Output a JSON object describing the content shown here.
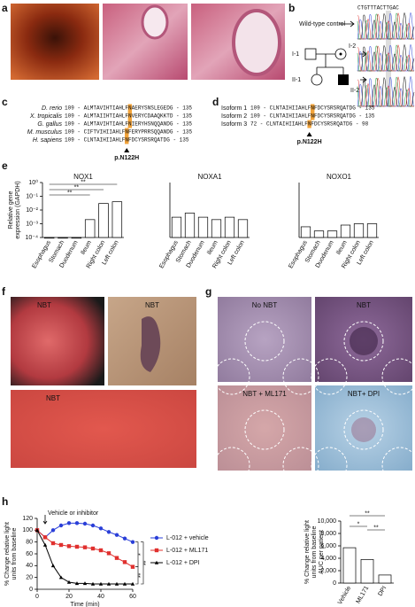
{
  "panel_labels": [
    "a",
    "b",
    "c",
    "d",
    "e",
    "f",
    "g",
    "h"
  ],
  "panel_b": {
    "control_label": "Wild-type control",
    "sequence": "CTGTTTACTTGAC",
    "individuals": [
      "I-1",
      "I-2",
      "II-1",
      "II-2"
    ]
  },
  "panel_c": {
    "rows": [
      {
        "name": "D. rerio",
        "left": "109 - ALMTAVIHTIAHLF",
        "residue": "N",
        "right": "AERYSNSLEGEDG - 135"
      },
      {
        "name": "X. tropicalis",
        "left": "109 - ALMTAIIHTIAHLF",
        "residue": "N",
        "right": "VERYCDAAQKKTD - 135"
      },
      {
        "name": "G. gallus",
        "left": "109 - ALMTAVIHTIAHLF",
        "residue": "N",
        "right": "IERYHSNQQANDG - 135"
      },
      {
        "name": "M. musculus",
        "left": "109 - CIFTVIHIIAHLF",
        "residue": "N",
        "right": "FERYPRRSQQANDG - 135"
      },
      {
        "name": "H. sapiens",
        "left": "109 - CLNTAIHIIAHLF",
        "residue": "N",
        "right": "FDCYSRSRQATDG - 135"
      }
    ],
    "mutation": "p.N122H"
  },
  "panel_d": {
    "rows": [
      {
        "name": "Isoform 1",
        "left": "109 - CLNTAIHIIAHLF",
        "residue": "N",
        "right": "FDCYSRSRQATDG - 135"
      },
      {
        "name": "Isoform 2",
        "left": "109 - CLNTAIHIIAHLF",
        "residue": "N",
        "right": "FDCYSRSRQATDG - 135"
      },
      {
        "name": "Isoform 3",
        "left": "72 - CLNTAIHIIAHLF",
        "residue": "N",
        "right": "FDCYSRSRQATDG - 98"
      }
    ],
    "mutation": "p.N122H"
  },
  "panel_f": {
    "labels": [
      "NBT",
      "NBT",
      "NBT"
    ]
  },
  "panel_g": {
    "labels": [
      "No NBT",
      "NBT",
      "NBT + ML171",
      "NBT+ DPI"
    ]
  },
  "chart_data": [
    {
      "type": "bar",
      "title": "NOX1",
      "y_label": [
        "Relative gene",
        "expression (GAPDH)"
      ],
      "log_scale": true,
      "categories": [
        "Esophagus",
        "Stomach",
        "Duodenum",
        "Ileum",
        "Right colon",
        "Left colon"
      ],
      "values": [
        0.0001,
        0.0001,
        0.0001,
        0.002,
        0.03,
        0.04
      ],
      "color": "#ffffff",
      "edge_color": "#000000",
      "ylim": [
        0.0001,
        1
      ],
      "yticks": [
        {
          "value": 0.0001,
          "label": "10⁻⁴"
        },
        {
          "value": 0.001,
          "label": "10⁻³"
        },
        {
          "value": 0.01,
          "label": "10⁻²"
        },
        {
          "value": 0.1,
          "label": "10⁻¹"
        },
        {
          "value": 1,
          "label": "10⁰"
        }
      ],
      "significance": [
        "**",
        "**",
        "**"
      ]
    },
    {
      "type": "bar",
      "title": "NOXA1",
      "log_scale": true,
      "categories": [
        "Esophagus",
        "Stomach",
        "Duodenum",
        "Ileum",
        "Right colon",
        "Left colon"
      ],
      "values": [
        0.003,
        0.006,
        0.003,
        0.002,
        0.003,
        0.002
      ],
      "color": "#ffffff",
      "edge_color": "#000000",
      "ylim": [
        0.0001,
        1
      ]
    },
    {
      "type": "bar",
      "title": "NOXO1",
      "log_scale": true,
      "categories": [
        "Esophagus",
        "Stomach",
        "Duodenum",
        "Ileum",
        "Right colon",
        "Left colon"
      ],
      "values": [
        0.0006,
        0.0003,
        0.0003,
        0.0008,
        0.001,
        0.001
      ],
      "color": "#ffffff",
      "edge_color": "#000000",
      "ylim": [
        0.0001,
        1
      ]
    },
    {
      "type": "line",
      "annotation": "Vehicle or inhibitor",
      "x_label": "Time (min)",
      "y_label": [
        "% Change relative light",
        "units from baseline"
      ],
      "x": [
        0,
        5,
        10,
        15,
        20,
        25,
        30,
        35,
        40,
        45,
        50,
        55,
        60
      ],
      "xlim": [
        0,
        60
      ],
      "xticks": [
        0,
        20,
        40,
        60
      ],
      "ylim": [
        0,
        120
      ],
      "yticks": [
        0,
        20,
        40,
        60,
        80,
        100,
        120
      ],
      "series": [
        {
          "name": "L-012 + vehicle",
          "color": "#2a3fd8",
          "marker": "circle",
          "values": [
            100,
            88,
            100,
            108,
            112,
            112,
            111,
            108,
            103,
            97,
            92,
            86,
            80
          ]
        },
        {
          "name": "L-012 + ML171",
          "color": "#e0302e",
          "marker": "square",
          "values": [
            100,
            88,
            78,
            75,
            73,
            72,
            71,
            69,
            66,
            61,
            53,
            46,
            38
          ]
        },
        {
          "name": "L-012 + DPI",
          "color": "#000000",
          "marker": "triangle",
          "values": [
            100,
            75,
            40,
            20,
            12,
            10,
            10,
            9,
            9,
            9,
            9,
            9,
            9
          ]
        }
      ],
      "significance": [
        "*",
        "**",
        "**"
      ]
    },
    {
      "type": "bar",
      "y_label": [
        "% Change relative light",
        "units from baseline",
        "AUC per patient"
      ],
      "categories": [
        "Vehicle",
        "ML171",
        "DPI"
      ],
      "values": [
        5700,
        3800,
        1300
      ],
      "color": "#ffffff",
      "edge_color": "#000000",
      "ylim": [
        0,
        10000
      ],
      "yticks": [
        0,
        {
          "value": 2000,
          "label": "2,000"
        },
        {
          "value": 4000,
          "label": "4,000"
        },
        {
          "value": 6000,
          "label": "6,000"
        },
        {
          "value": 8000,
          "label": "8,000"
        },
        {
          "value": 10000,
          "label": "10,000"
        }
      ],
      "significance": [
        "**",
        "*",
        "**"
      ]
    }
  ]
}
